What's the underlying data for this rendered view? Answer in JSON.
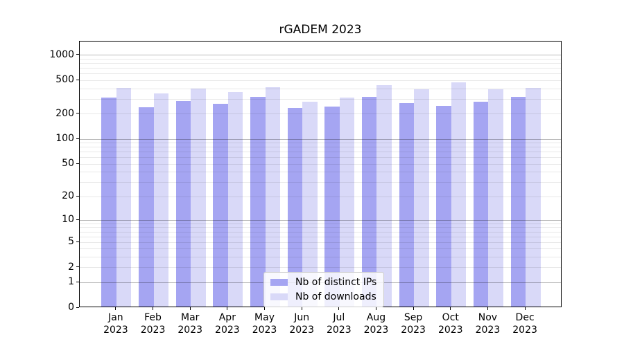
{
  "chart_data": {
    "type": "bar",
    "title": "rGADEM 2023",
    "year": "2023",
    "categories": [
      "Jan",
      "Feb",
      "Mar",
      "Apr",
      "May",
      "Jun",
      "Jul",
      "Aug",
      "Sep",
      "Oct",
      "Nov",
      "Dec"
    ],
    "series": [
      {
        "name": "Nb of distinct IPs",
        "color": "#a5a5f2",
        "values": [
          300,
          233,
          276,
          257,
          310,
          226,
          238,
          311,
          260,
          242,
          270,
          307
        ]
      },
      {
        "name": "Nb of downloads",
        "color": "#d9d9f8",
        "values": [
          392,
          338,
          385,
          351,
          400,
          269,
          304,
          428,
          380,
          457,
          381,
          395
        ]
      }
    ],
    "yticks": [
      0,
      1,
      2,
      5,
      10,
      20,
      50,
      100,
      200,
      500,
      1000
    ],
    "scale": "log1p",
    "ylim": [
      0,
      1430
    ],
    "grid": true,
    "legend_position": "lower center"
  }
}
